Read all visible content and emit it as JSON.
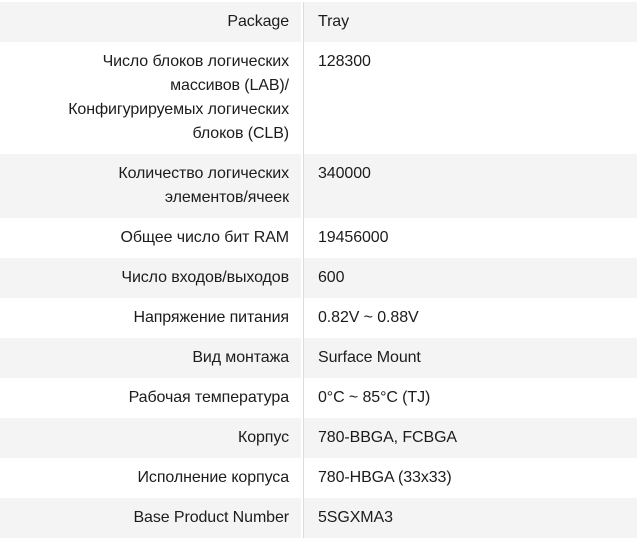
{
  "theme": {
    "page-bg": "#ffffff",
    "row-bg": "#ffffff",
    "row-alt-bg": "#f4f4f4",
    "divider-color": "#dcdcdc",
    "text-color": "#1c1c1c"
  },
  "table": {
    "rows": [
      {
        "label": "Package",
        "value": "Tray"
      },
      {
        "label": "Число блоков логических\nмассивов (LAB)/\nКонфигурируемых логических\nблоков (CLB)",
        "value": "128300"
      },
      {
        "label": "Количество логических\nэлементов/ячеек",
        "value": "340000"
      },
      {
        "label": "Общее число бит RAM",
        "value": "19456000"
      },
      {
        "label": "Число входов/выходов",
        "value": "600"
      },
      {
        "label": "Напряжение питания",
        "value": "0.82V ~ 0.88V"
      },
      {
        "label": "Вид монтажа",
        "value": "Surface Mount"
      },
      {
        "label": "Рабочая температура",
        "value": "0°C ~ 85°C (TJ)"
      },
      {
        "label": "Корпус",
        "value": "780-BBGA, FCBGA"
      },
      {
        "label": "Исполнение корпуса",
        "value": "780-HBGA (33x33)"
      },
      {
        "label": "Base Product Number",
        "value": "5SGXMA3"
      }
    ]
  }
}
